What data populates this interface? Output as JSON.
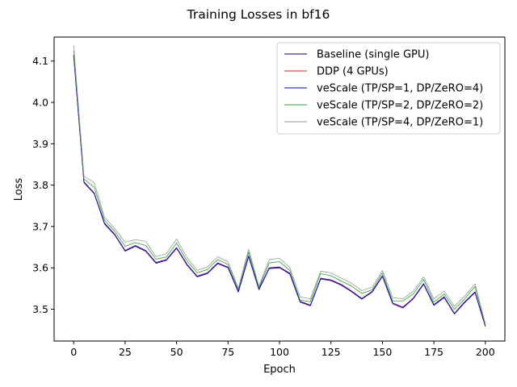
{
  "chart_data": {
    "type": "line",
    "title": "Training Losses in bf16",
    "xlabel": "Epoch",
    "ylabel": "Loss",
    "xlim": [
      -9.5,
      209.5
    ],
    "ylim": [
      3.423,
      4.158
    ],
    "xticks": [
      0,
      25,
      50,
      75,
      100,
      125,
      150,
      175,
      200
    ],
    "yticks": [
      3.5,
      3.6,
      3.7,
      3.8,
      3.9,
      4.0,
      4.1
    ],
    "ytick_labels": [
      "3.5",
      "3.6",
      "3.7",
      "3.8",
      "3.9",
      "4.0",
      "4.1"
    ],
    "grid": false,
    "legend_position": "top-right",
    "x": [
      0,
      5,
      10,
      15,
      20,
      25,
      30,
      35,
      40,
      45,
      50,
      55,
      60,
      65,
      70,
      75,
      80,
      85,
      90,
      95,
      100,
      105,
      110,
      115,
      120,
      125,
      130,
      135,
      140,
      145,
      150,
      155,
      160,
      165,
      170,
      175,
      180,
      185,
      190,
      195,
      200
    ],
    "series": [
      {
        "name": "Baseline (single GPU)",
        "color": "#000080",
        "values": [
          4.113,
          3.806,
          3.779,
          3.706,
          3.679,
          3.64,
          3.652,
          3.64,
          3.611,
          3.618,
          3.647,
          3.607,
          3.578,
          3.586,
          3.61,
          3.6,
          3.541,
          3.627,
          3.547,
          3.598,
          3.6,
          3.585,
          3.517,
          3.508,
          3.573,
          3.569,
          3.558,
          3.542,
          3.524,
          3.541,
          3.579,
          3.513,
          3.503,
          3.525,
          3.56,
          3.509,
          3.528,
          3.488,
          3.516,
          3.54,
          3.458
        ]
      },
      {
        "name": "DDP (4 GPUs)",
        "color": "#d62728",
        "values": [
          4.115,
          3.807,
          3.78,
          3.707,
          3.68,
          3.641,
          3.653,
          3.641,
          3.612,
          3.619,
          3.648,
          3.608,
          3.579,
          3.587,
          3.611,
          3.601,
          3.542,
          3.628,
          3.548,
          3.599,
          3.601,
          3.586,
          3.518,
          3.509,
          3.574,
          3.57,
          3.559,
          3.543,
          3.525,
          3.542,
          3.58,
          3.514,
          3.504,
          3.526,
          3.561,
          3.51,
          3.529,
          3.489,
          3.517,
          3.541,
          3.459
        ]
      },
      {
        "name": "veScale (TP/SP=1, DP/ZeRO=4)",
        "color": "#0000cc",
        "values": [
          4.114,
          3.808,
          3.781,
          3.708,
          3.681,
          3.642,
          3.654,
          3.642,
          3.613,
          3.62,
          3.649,
          3.609,
          3.58,
          3.588,
          3.612,
          3.602,
          3.543,
          3.629,
          3.549,
          3.6,
          3.602,
          3.587,
          3.519,
          3.51,
          3.575,
          3.571,
          3.56,
          3.544,
          3.526,
          3.543,
          3.581,
          3.515,
          3.505,
          3.527,
          3.562,
          3.511,
          3.53,
          3.49,
          3.518,
          3.542,
          3.46
        ]
      },
      {
        "name": "veScale (TP/SP=2, DP/ZeRO=2)",
        "color": "#2ca02c",
        "values": [
          4.125,
          3.815,
          3.795,
          3.715,
          3.688,
          3.652,
          3.661,
          3.654,
          3.621,
          3.626,
          3.66,
          3.617,
          3.588,
          3.596,
          3.62,
          3.608,
          3.548,
          3.638,
          3.552,
          3.612,
          3.615,
          3.594,
          3.522,
          3.518,
          3.586,
          3.581,
          3.568,
          3.556,
          3.538,
          3.547,
          3.588,
          3.52,
          3.52,
          3.537,
          3.572,
          3.517,
          3.537,
          3.5,
          3.525,
          3.555,
          3.462
        ]
      },
      {
        "name": "veScale (TP/SP=4, DP/ZeRO=1)",
        "color": "#999999",
        "values": [
          4.138,
          3.822,
          3.806,
          3.722,
          3.695,
          3.662,
          3.668,
          3.664,
          3.627,
          3.634,
          3.67,
          3.625,
          3.594,
          3.602,
          3.627,
          3.615,
          3.551,
          3.645,
          3.556,
          3.62,
          3.623,
          3.601,
          3.53,
          3.525,
          3.592,
          3.588,
          3.575,
          3.563,
          3.545,
          3.553,
          3.594,
          3.528,
          3.525,
          3.544,
          3.578,
          3.525,
          3.544,
          3.507,
          3.532,
          3.561,
          3.465
        ]
      }
    ]
  }
}
